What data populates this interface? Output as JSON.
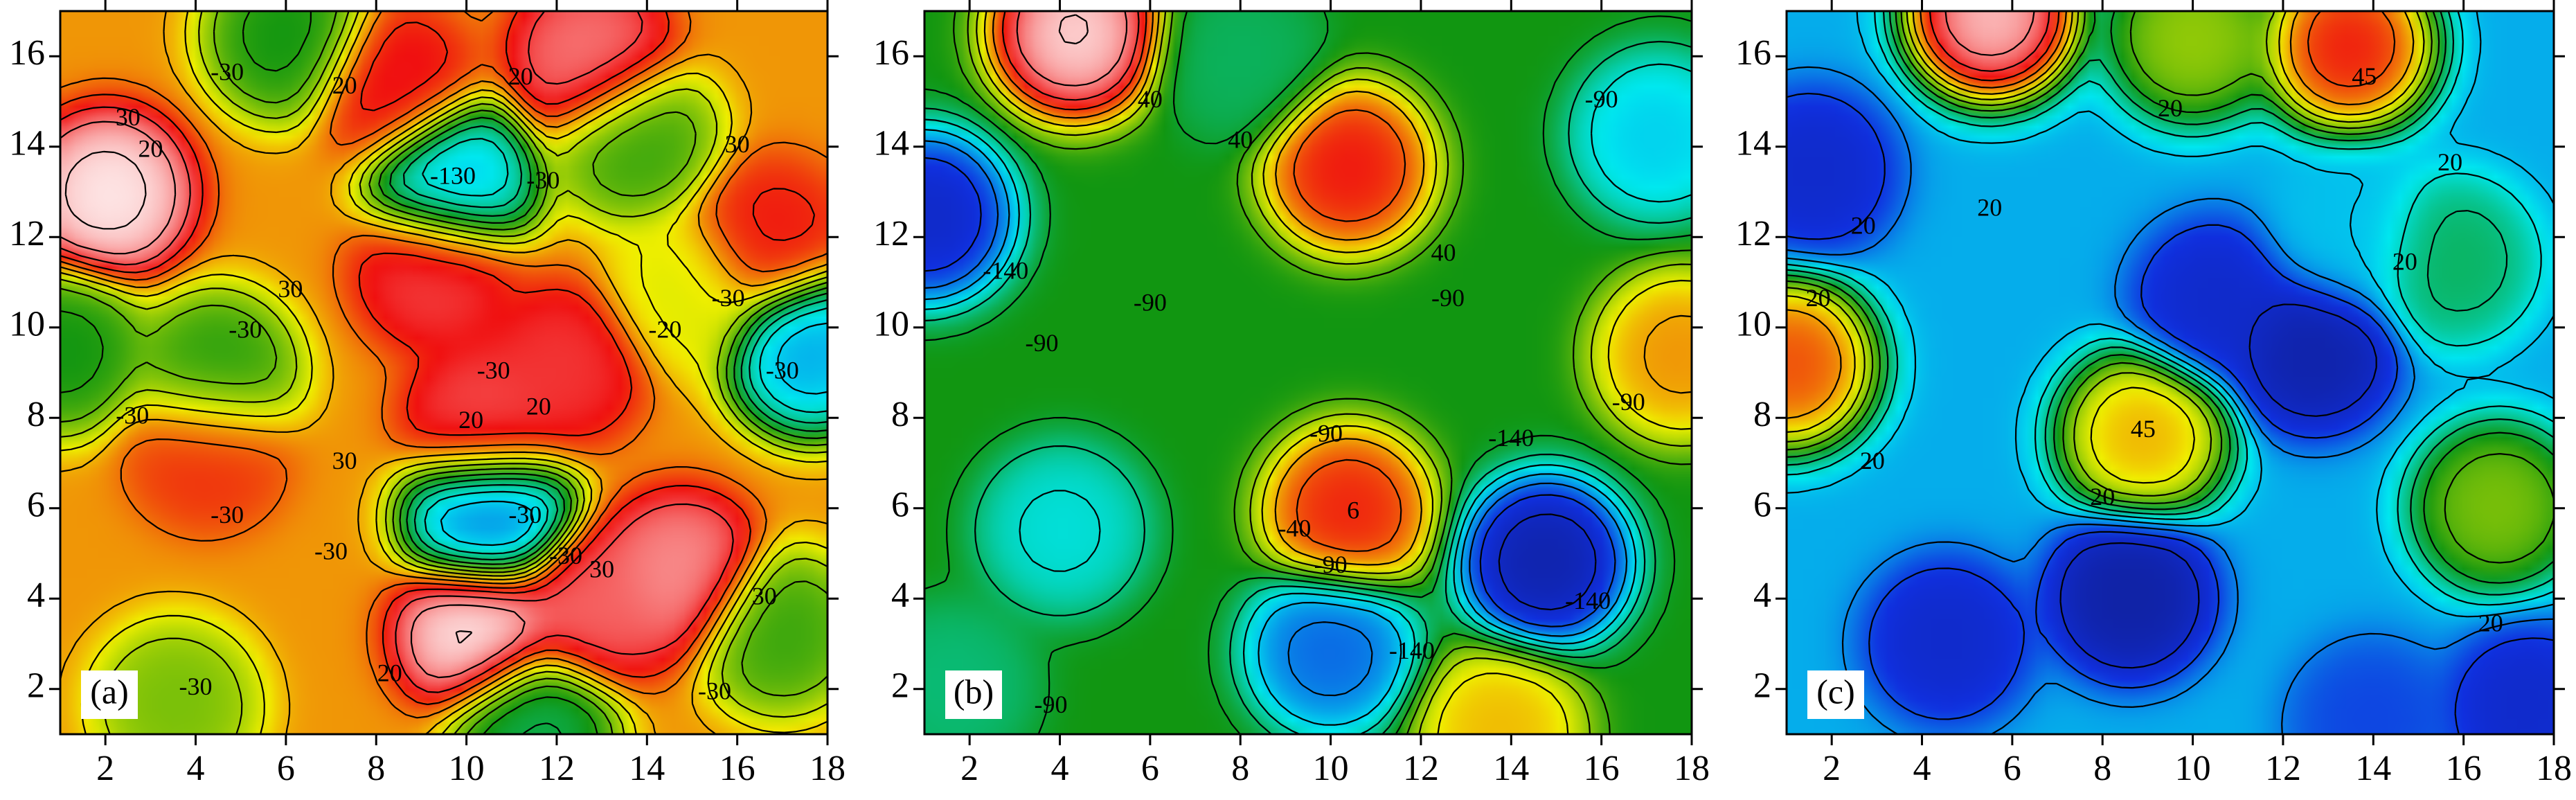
{
  "chart_data": [
    {
      "type": "contour",
      "panel_label": "(a)",
      "xlim": [
        1,
        18
      ],
      "ylim": [
        1,
        17
      ],
      "x_ticks": [
        2,
        4,
        6,
        8,
        10,
        12,
        14,
        16,
        18
      ],
      "y_ticks": [
        2,
        4,
        6,
        8,
        10,
        12,
        14,
        16
      ],
      "x_tick_labels": [
        "2",
        "4",
        "6",
        "8",
        "10",
        "12",
        "14",
        "16",
        "18"
      ],
      "y_tick_labels": [
        "2",
        "4",
        "6",
        "8",
        "10",
        "12",
        "14",
        "16"
      ],
      "color_scale": [
        "#1030e0",
        "#00e8f0",
        "#119611",
        "#f0f000",
        "#f01010",
        "#ffffff"
      ],
      "blobs": [
        {
          "x": 2.0,
          "y": 13.0,
          "value": 1.0
        },
        {
          "x": 10.3,
          "y": 3.2,
          "value": 1.0
        },
        {
          "x": 14.8,
          "y": 4.5,
          "value": 0.92
        },
        {
          "x": 12.8,
          "y": 3.7,
          "value": 0.88
        },
        {
          "x": 12.8,
          "y": 16.0,
          "value": 0.9
        },
        {
          "x": 9.3,
          "y": 11.3,
          "value": 0.85
        },
        {
          "x": 8.4,
          "y": 15.4,
          "value": 0.82
        },
        {
          "x": 10.4,
          "y": 7.9,
          "value": 0.86
        },
        {
          "x": 12.2,
          "y": 9.2,
          "value": 0.84
        },
        {
          "x": 16.8,
          "y": 12.0,
          "value": 0.8
        },
        {
          "x": 4.2,
          "y": 7.3,
          "value": 0.78
        },
        {
          "x": 10.5,
          "y": 5.8,
          "value": 0.05
        },
        {
          "x": 9.7,
          "y": 13.3,
          "value": 0.12
        },
        {
          "x": 17.7,
          "y": 9.5,
          "value": 0.1
        },
        {
          "x": 4.4,
          "y": 9.0,
          "value": 0.4
        },
        {
          "x": 1.0,
          "y": 9.5,
          "value": 0.38
        },
        {
          "x": 17.0,
          "y": 3.2,
          "value": 0.42
        },
        {
          "x": 13.8,
          "y": 14.2,
          "value": 0.42
        },
        {
          "x": 6.0,
          "y": 16.5,
          "value": 0.38
        },
        {
          "x": 3.5,
          "y": 1.6,
          "value": 0.48
        },
        {
          "x": 11.5,
          "y": 1.2,
          "value": 0.32
        },
        {
          "x": 14.9,
          "y": 10.8,
          "value": 0.58
        }
      ],
      "background_value": 0.68,
      "contour_labels": [
        {
          "x": 4.7,
          "y": 15.6,
          "text": "-30"
        },
        {
          "x": 2.5,
          "y": 14.6,
          "text": "30"
        },
        {
          "x": 3.0,
          "y": 13.9,
          "text": "20"
        },
        {
          "x": 7.3,
          "y": 15.3,
          "text": "20"
        },
        {
          "x": 11.2,
          "y": 15.5,
          "text": "20"
        },
        {
          "x": 16.0,
          "y": 14.0,
          "text": "30"
        },
        {
          "x": 9.7,
          "y": 13.3,
          "text": "-130"
        },
        {
          "x": 11.7,
          "y": 13.2,
          "text": "-30"
        },
        {
          "x": 6.1,
          "y": 10.8,
          "text": "30"
        },
        {
          "x": 5.1,
          "y": 9.9,
          "text": "-30"
        },
        {
          "x": 14.4,
          "y": 9.9,
          "text": "-20"
        },
        {
          "x": 15.8,
          "y": 10.6,
          "text": "-30"
        },
        {
          "x": 17.0,
          "y": 9.0,
          "text": "-30"
        },
        {
          "x": 10.6,
          "y": 9.0,
          "text": "-30"
        },
        {
          "x": 11.6,
          "y": 8.2,
          "text": "20"
        },
        {
          "x": 2.6,
          "y": 8.0,
          "text": "-30"
        },
        {
          "x": 10.1,
          "y": 7.9,
          "text": "20"
        },
        {
          "x": 7.3,
          "y": 7.0,
          "text": "30"
        },
        {
          "x": 4.7,
          "y": 5.8,
          "text": "-30"
        },
        {
          "x": 7.0,
          "y": 5.0,
          "text": "-30"
        },
        {
          "x": 11.3,
          "y": 5.8,
          "text": "-30"
        },
        {
          "x": 12.2,
          "y": 4.9,
          "text": "-30"
        },
        {
          "x": 13.0,
          "y": 4.6,
          "text": "30"
        },
        {
          "x": 8.3,
          "y": 2.3,
          "text": "20"
        },
        {
          "x": 4.0,
          "y": 2.0,
          "text": "-30"
        },
        {
          "x": 15.5,
          "y": 1.9,
          "text": "-30"
        },
        {
          "x": 16.6,
          "y": 4.0,
          "text": "30"
        }
      ]
    },
    {
      "type": "contour",
      "panel_label": "(b)",
      "xlim": [
        1,
        18
      ],
      "ylim": [
        1,
        17
      ],
      "x_ticks": [
        2,
        4,
        6,
        8,
        10,
        12,
        14,
        16,
        18
      ],
      "y_ticks": [
        2,
        4,
        6,
        8,
        10,
        12,
        14,
        16
      ],
      "x_tick_labels": [
        "2",
        "4",
        "6",
        "8",
        "10",
        "12",
        "14",
        "16",
        "18"
      ],
      "y_tick_labels": [
        "2",
        "4",
        "6",
        "8",
        "10",
        "12",
        "14",
        "16"
      ],
      "color_scale": [
        "#101a80",
        "#1030e0",
        "#00e8f0",
        "#119611",
        "#f0f000",
        "#f01010",
        "#ffffff"
      ],
      "blobs": [
        {
          "x": 4.3,
          "y": 16.6,
          "value": 1.0
        },
        {
          "x": 10.4,
          "y": 13.6,
          "value": 0.85
        },
        {
          "x": 10.4,
          "y": 5.9,
          "value": 0.84
        },
        {
          "x": 17.8,
          "y": 9.4,
          "value": 0.75
        },
        {
          "x": 13.8,
          "y": 1.0,
          "value": 0.72
        },
        {
          "x": 8.0,
          "y": 16.0,
          "value": 0.44
        },
        {
          "x": 1.0,
          "y": 12.5,
          "value": 0.1
        },
        {
          "x": 14.8,
          "y": 4.8,
          "value": 0.05
        },
        {
          "x": 10.0,
          "y": 2.8,
          "value": 0.2
        },
        {
          "x": 17.3,
          "y": 14.3,
          "value": 0.3
        },
        {
          "x": 4.0,
          "y": 5.5,
          "value": 0.34
        },
        {
          "x": 1.5,
          "y": 2.0,
          "value": 0.42
        }
      ],
      "background_value": 0.5,
      "contour_labels": [
        {
          "x": 6.0,
          "y": 15.0,
          "text": "40"
        },
        {
          "x": 16.0,
          "y": 15.0,
          "text": "-90"
        },
        {
          "x": 8.0,
          "y": 14.1,
          "text": "40"
        },
        {
          "x": 12.5,
          "y": 11.6,
          "text": "40"
        },
        {
          "x": 2.8,
          "y": 11.2,
          "text": "-140"
        },
        {
          "x": 6.0,
          "y": 10.5,
          "text": "-90"
        },
        {
          "x": 12.6,
          "y": 10.6,
          "text": "-90"
        },
        {
          "x": 3.6,
          "y": 9.6,
          "text": "-90"
        },
        {
          "x": 16.6,
          "y": 8.3,
          "text": "-90"
        },
        {
          "x": 14.0,
          "y": 7.5,
          "text": "-140"
        },
        {
          "x": 9.9,
          "y": 7.6,
          "text": "-90"
        },
        {
          "x": 9.2,
          "y": 5.5,
          "text": "-40"
        },
        {
          "x": 10.5,
          "y": 5.9,
          "text": "6"
        },
        {
          "x": 10.0,
          "y": 4.7,
          "text": "-90"
        },
        {
          "x": 15.7,
          "y": 3.9,
          "text": "-140"
        },
        {
          "x": 11.8,
          "y": 2.8,
          "text": "-140"
        },
        {
          "x": 3.8,
          "y": 1.6,
          "text": "-90"
        }
      ]
    },
    {
      "type": "contour",
      "panel_label": "(c)",
      "xlim": [
        1,
        18
      ],
      "ylim": [
        1,
        17
      ],
      "x_ticks": [
        2,
        4,
        6,
        8,
        10,
        12,
        14,
        16,
        18
      ],
      "y_ticks": [
        2,
        4,
        6,
        8,
        10,
        12,
        14,
        16
      ],
      "x_tick_labels": [
        "2",
        "4",
        "6",
        "8",
        "10",
        "12",
        "14",
        "16",
        "18"
      ],
      "y_tick_labels": [
        "2",
        "4",
        "6",
        "8",
        "10",
        "12",
        "14",
        "16"
      ],
      "color_scale": [
        "#101a80",
        "#1030e0",
        "#00e8f0",
        "#119611",
        "#f0f000",
        "#f01010",
        "#ffffff"
      ],
      "blobs": [
        {
          "x": 5.5,
          "y": 17.0,
          "value": 1.0
        },
        {
          "x": 13.5,
          "y": 16.3,
          "value": 0.86
        },
        {
          "x": 1.0,
          "y": 9.2,
          "value": 0.82
        },
        {
          "x": 8.9,
          "y": 7.6,
          "value": 0.74
        },
        {
          "x": 16.8,
          "y": 6.0,
          "value": 0.6
        },
        {
          "x": 15.8,
          "y": 11.5,
          "value": 0.45
        },
        {
          "x": 10.0,
          "y": 16.5,
          "value": 0.62
        },
        {
          "x": 1.5,
          "y": 13.5,
          "value": 0.12
        },
        {
          "x": 10.5,
          "y": 10.6,
          "value": 0.12
        },
        {
          "x": 12.7,
          "y": 9.5,
          "value": 0.06
        },
        {
          "x": 8.6,
          "y": 4.0,
          "value": 0.05
        },
        {
          "x": 4.5,
          "y": 3.0,
          "value": 0.12
        },
        {
          "x": 17.5,
          "y": 1.5,
          "value": 0.12
        },
        {
          "x": 13.5,
          "y": 12.0,
          "value": 0.3
        },
        {
          "x": 14.0,
          "y": 1.2,
          "value": 0.18
        }
      ],
      "background_value": 0.28,
      "contour_labels": [
        {
          "x": 13.8,
          "y": 15.5,
          "text": "45"
        },
        {
          "x": 9.5,
          "y": 14.8,
          "text": "20"
        },
        {
          "x": 15.7,
          "y": 13.6,
          "text": "20"
        },
        {
          "x": 5.5,
          "y": 12.6,
          "text": "20"
        },
        {
          "x": 2.7,
          "y": 12.2,
          "text": "20"
        },
        {
          "x": 14.7,
          "y": 11.4,
          "text": "20"
        },
        {
          "x": 1.7,
          "y": 10.6,
          "text": "20"
        },
        {
          "x": 8.9,
          "y": 7.7,
          "text": "45"
        },
        {
          "x": 2.9,
          "y": 7.0,
          "text": "20"
        },
        {
          "x": 8.0,
          "y": 6.2,
          "text": "20"
        },
        {
          "x": 16.6,
          "y": 3.4,
          "text": "20"
        }
      ]
    }
  ]
}
